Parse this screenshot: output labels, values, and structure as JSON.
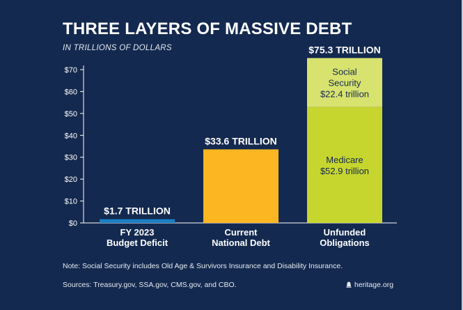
{
  "chart_data": {
    "type": "bar",
    "title": "THREE LAYERS OF MASSIVE DEBT",
    "subtitle": "IN TRILLIONS OF DOLLARS",
    "ylim": [
      0,
      70
    ],
    "yticks": [
      "$0",
      "$10",
      "$20",
      "$30",
      "$40",
      "$50",
      "$60",
      "$70"
    ],
    "categories": [
      [
        "FY 2023",
        "Budget Deficit"
      ],
      [
        "Current",
        "National Debt"
      ],
      [
        "Unfunded",
        "Obligations"
      ]
    ],
    "bars": [
      {
        "total_label": "$1.7 TRILLION",
        "segments": [
          {
            "value": 1.7,
            "color": "#1a7fc4"
          }
        ]
      },
      {
        "total_label": "$33.6 TRILLION",
        "segments": [
          {
            "value": 33.6,
            "color": "#fbb622"
          }
        ]
      },
      {
        "total_label": "$75.3 TRILLION",
        "segments": [
          {
            "value": 52.9,
            "color": "#c7d62e",
            "label": [
              "Medicare",
              "$52.9 trillion"
            ]
          },
          {
            "value": 22.4,
            "color": "#d8e36f",
            "label": [
              "Social",
              "Security",
              "$22.4 trillion"
            ]
          }
        ]
      }
    ],
    "colors": {
      "background": "#14294f",
      "axis": "#ffffff",
      "segment_text": "#14294f"
    }
  },
  "footer": {
    "note": "Note: Social Security includes Old Age & Survivors Insurance and Disability Insurance.",
    "sources": "Sources: Treasury.gov, SSA.gov, CMS.gov, and CBO.",
    "logo_text": "heritage.org"
  }
}
